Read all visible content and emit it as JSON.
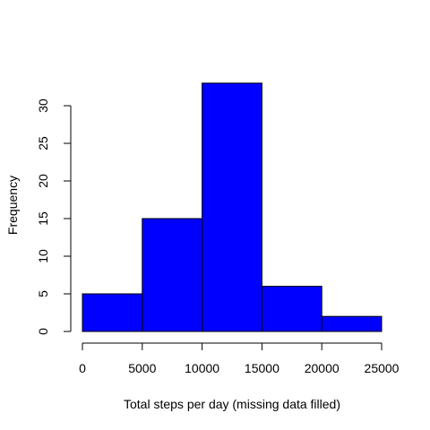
{
  "chart_data": {
    "type": "bar",
    "histogram": true,
    "bins": [
      {
        "start": 0,
        "end": 5000,
        "count": 5
      },
      {
        "start": 5000,
        "end": 10000,
        "count": 15
      },
      {
        "start": 10000,
        "end": 15000,
        "count": 33
      },
      {
        "start": 15000,
        "end": 20000,
        "count": 6
      },
      {
        "start": 20000,
        "end": 25000,
        "count": 2
      }
    ],
    "title": "",
    "xlabel": "Total steps per day (missing data filled)",
    "ylabel": "Frequency",
    "xlim": [
      0,
      25000
    ],
    "ylim": [
      0,
      35
    ],
    "xticks": [
      0,
      5000,
      10000,
      15000,
      20000,
      25000
    ],
    "yticks": [
      0,
      5,
      10,
      15,
      20,
      25,
      30
    ],
    "grid": false,
    "bar_color": "#0000ff",
    "border_color": "#000000"
  }
}
